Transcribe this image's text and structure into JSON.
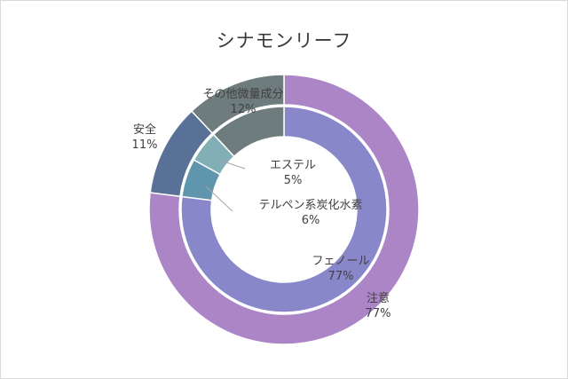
{
  "chart_data": {
    "type": "pie",
    "title": "シナモンリーフ",
    "rings": [
      {
        "ring": "outer",
        "slices": [
          {
            "name": "注意",
            "value": 77,
            "label_value": "77%",
            "color": "#ab85c6"
          },
          {
            "name": "安全",
            "value": 11,
            "label_value": "11%",
            "color": "#5a7197"
          },
          {
            "name": "その他微量成分",
            "value": 12,
            "label_value": "12%",
            "color": "#6f7c7e"
          }
        ]
      },
      {
        "ring": "inner",
        "slices": [
          {
            "name": "フェノール",
            "value": 77,
            "label_value": "77%",
            "color": "#8887c9"
          },
          {
            "name": "テルペン系炭化水素",
            "value": 6,
            "label_value": "6%",
            "color": "#5f95ad"
          },
          {
            "name": "エステル",
            "value": 5,
            "label_value": "5%",
            "color": "#82aeb5"
          },
          {
            "name": "その他微量成分",
            "value": 12,
            "label_value": "12%",
            "color": "#6f7c7e"
          }
        ]
      }
    ]
  }
}
